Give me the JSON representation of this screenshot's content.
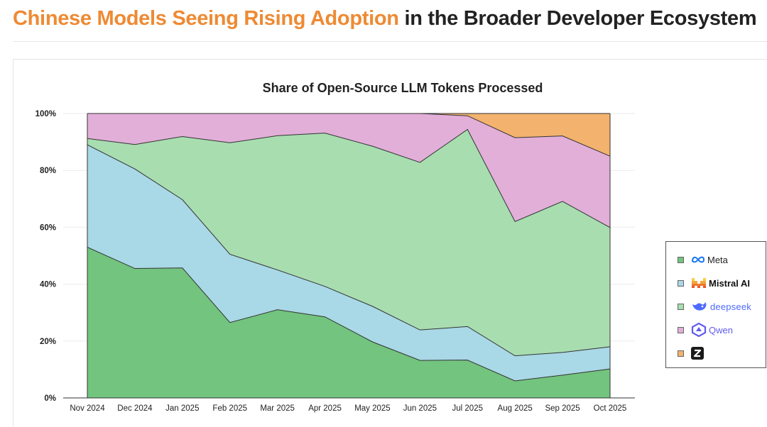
{
  "header": {
    "title_accent": "Chinese Models Seeing Rising Adoption",
    "title_rest": " in the Broader Developer Ecosystem"
  },
  "colors": {
    "accent": "#ee8a33",
    "meta": "#72c47e",
    "mistral": "#a9d8e6",
    "deepseek": "#a8ddb0",
    "qwen": "#e2afd9",
    "zhipu": "#f3b26d"
  },
  "chart_data": {
    "type": "area",
    "stacked": true,
    "title": "Share of Open-Source LLM Tokens Processed",
    "xlabel": "",
    "ylabel": "",
    "ylim": [
      0,
      100
    ],
    "yticks": [
      "0%",
      "20%",
      "40%",
      "60%",
      "80%",
      "100%"
    ],
    "categories": [
      "Nov 2024",
      "Dec 2024",
      "Jan 2025",
      "Feb 2025",
      "Mar 2025",
      "Apr 2025",
      "May 2025",
      "Jun 2025",
      "Jul 2025",
      "Aug 2025",
      "Sep 2025",
      "Oct 2025"
    ],
    "series": [
      {
        "name": "Meta",
        "color": "#72c47e",
        "icon": "meta-icon",
        "values": [
          53,
          45.5,
          45.7,
          26.5,
          31,
          28.5,
          19.7,
          13.2,
          13.3,
          6,
          8,
          10.2
        ]
      },
      {
        "name": "Mistral AI",
        "color": "#a9d8e6",
        "icon": "mistral-icon",
        "values": [
          36,
          35,
          24,
          24,
          14,
          10.7,
          12.5,
          10.7,
          11.8,
          8.8,
          8,
          7.8
        ]
      },
      {
        "name": "deepseek",
        "color": "#a8ddb0",
        "icon": "deepseek-icon",
        "values": [
          2.2,
          8.6,
          22.2,
          39.2,
          47.2,
          53.9,
          56.3,
          58.9,
          69.3,
          47.2,
          53.1,
          41.9
        ]
      },
      {
        "name": "Qwen",
        "color": "#e2afd9",
        "icon": "qwen-icon",
        "values": [
          8.8,
          10.9,
          8.1,
          10.3,
          7.8,
          6.9,
          11.5,
          17.2,
          4.8,
          29.5,
          23,
          25.1
        ]
      },
      {
        "name": "Z",
        "color": "#f3b26d",
        "icon": "zhipu-z-icon",
        "values": [
          0,
          0,
          0,
          0,
          0,
          0,
          0,
          0,
          0.8,
          8.5,
          7.9,
          15
        ]
      }
    ],
    "legend_position": "right"
  }
}
